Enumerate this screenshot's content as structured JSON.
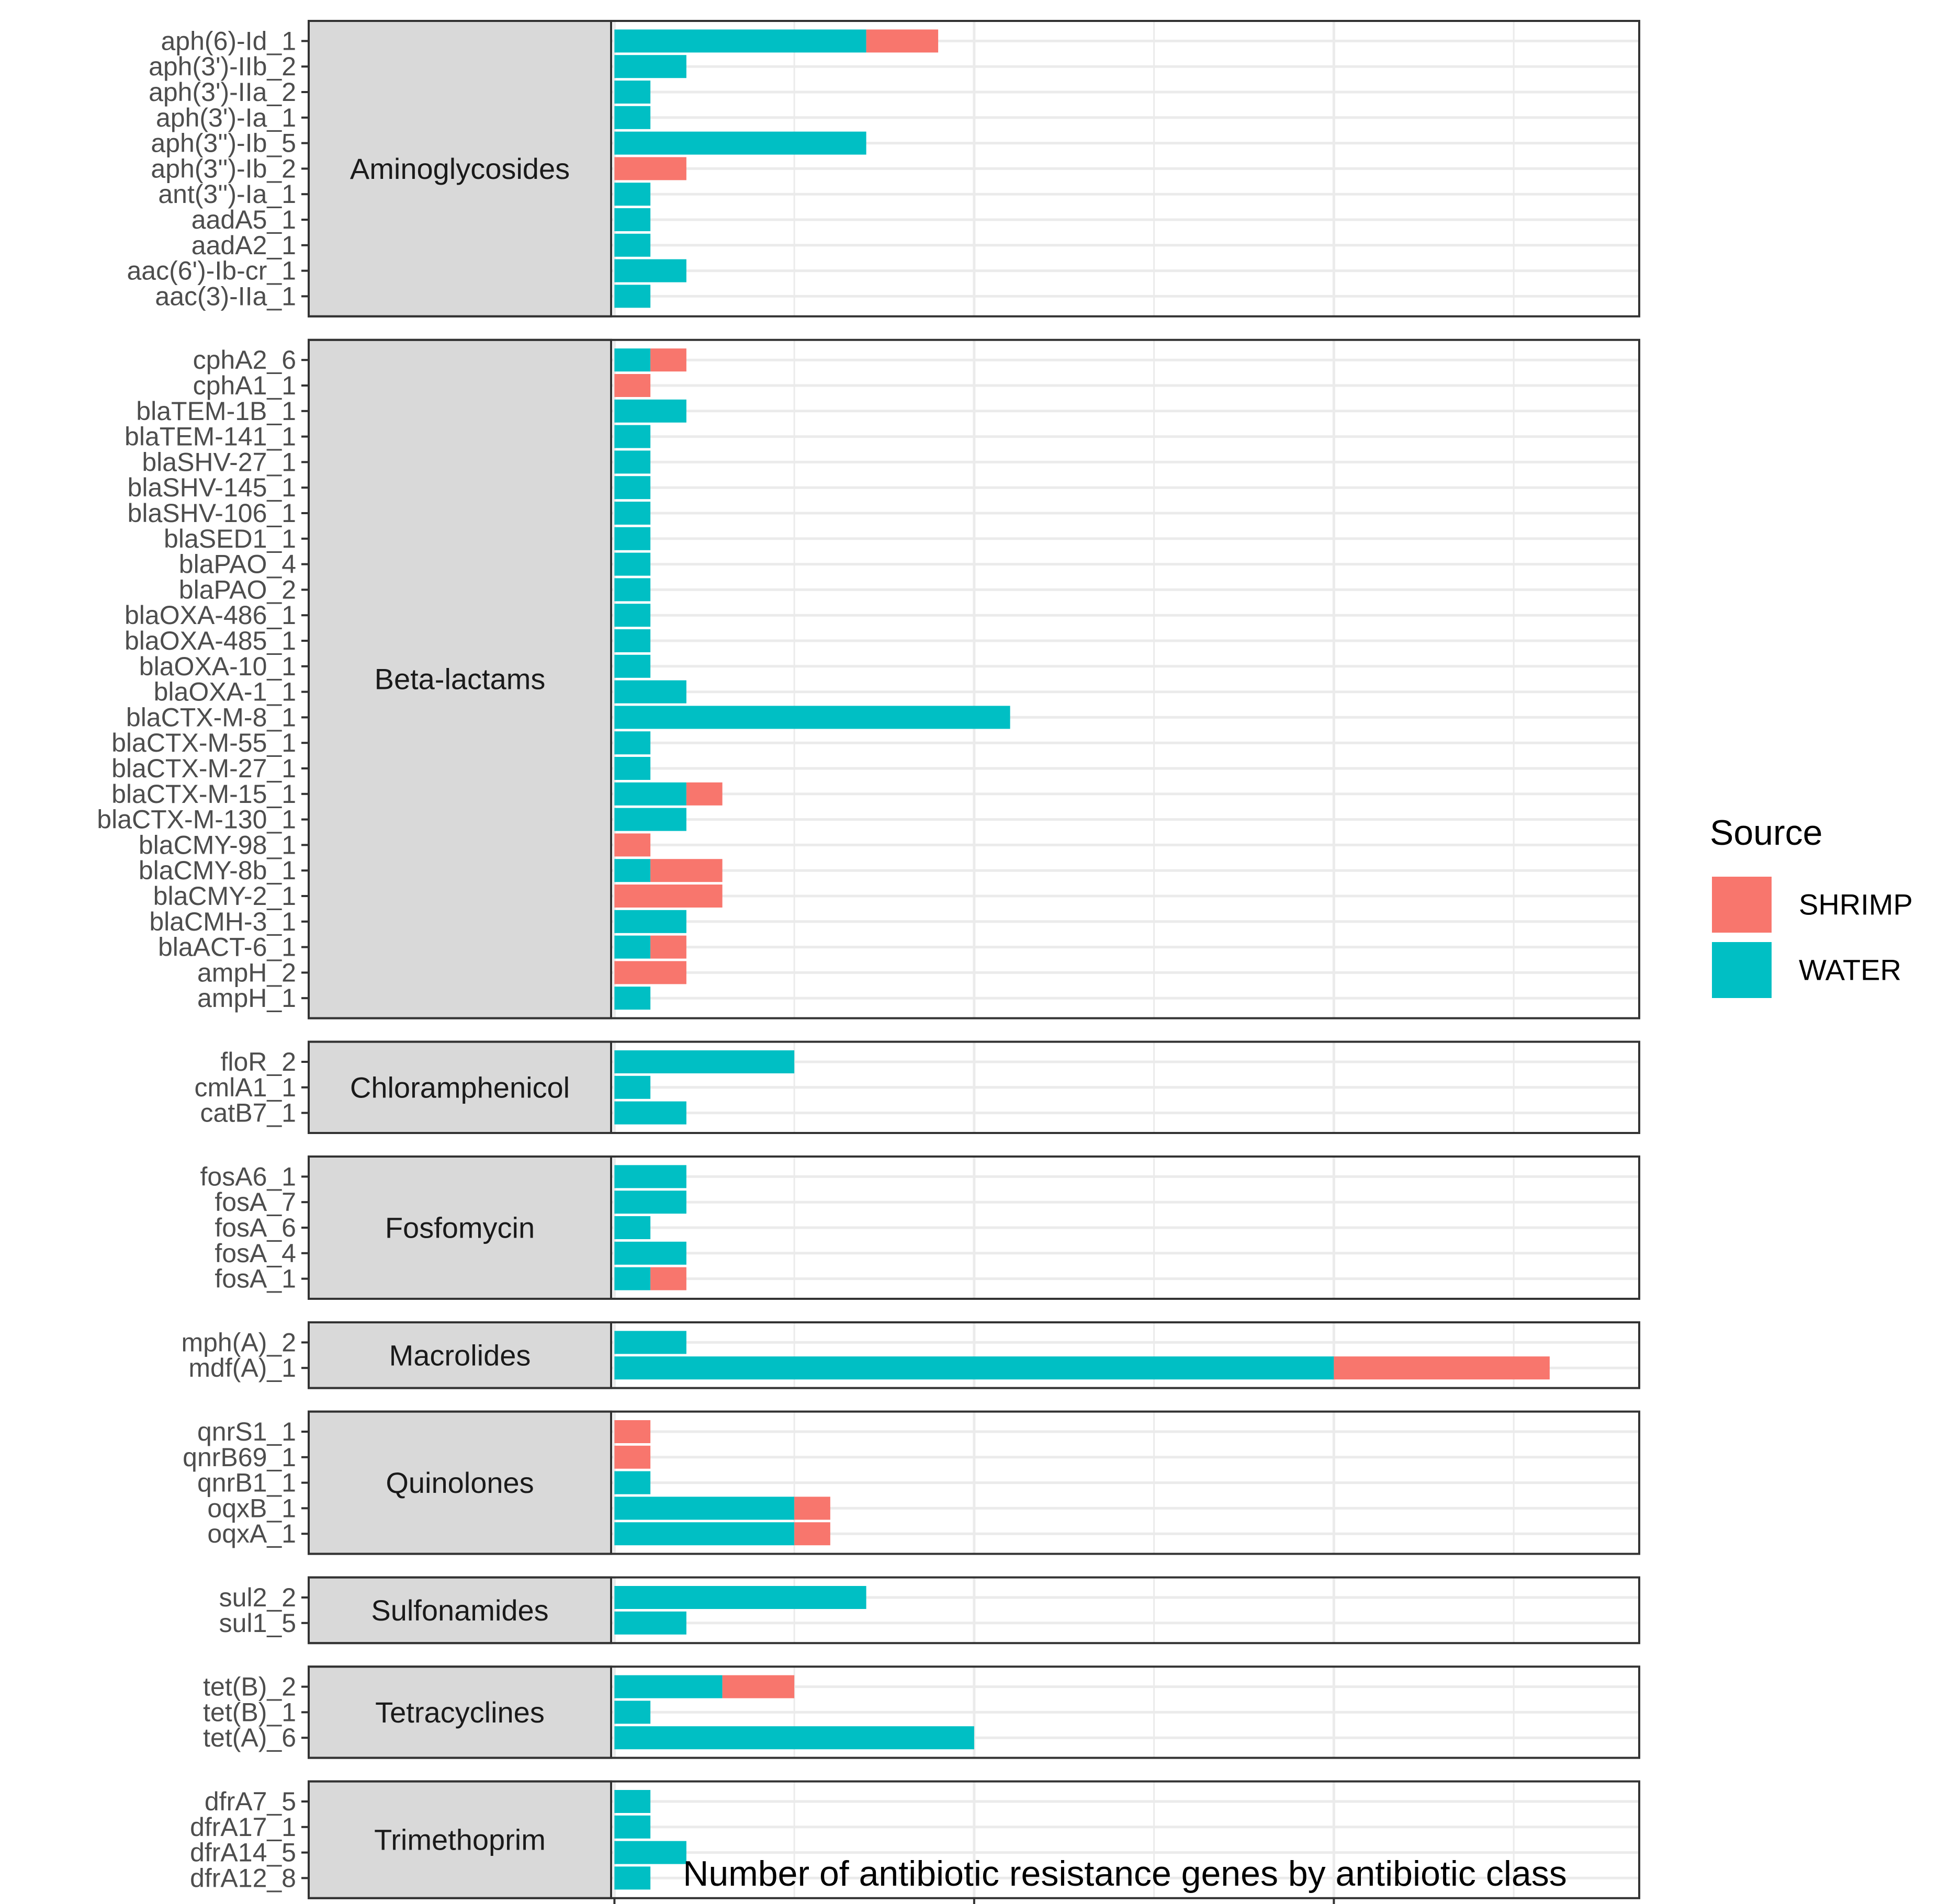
{
  "chart_data": {
    "type": "bar",
    "orientation": "horizontal",
    "stacked": true,
    "xlabel": "Number of antibiotic resistance genes by antibiotic class",
    "ylabel": "",
    "xlim": [
      -8.5,
      27.3
    ],
    "x_ticks": [
      0,
      10,
      20
    ],
    "grid": true,
    "legend": {
      "title": "Source",
      "position": "right",
      "items": [
        {
          "name": "SHRIMP",
          "color": "#F8766D"
        },
        {
          "name": "WATER",
          "color": "#00BFC4"
        }
      ]
    },
    "series": [
      {
        "name": "WATER",
        "color": "#00BFC4"
      },
      {
        "name": "SHRIMP",
        "color": "#F8766D"
      }
    ],
    "panels": [
      {
        "label": "Aminoglycosides",
        "genes": [
          {
            "name": "aph(6)-Id_1",
            "water": 7,
            "shrimp": 2
          },
          {
            "name": "aph(3')-IIb_2",
            "water": 2,
            "shrimp": 0
          },
          {
            "name": "aph(3')-IIa_2",
            "water": 1,
            "shrimp": 0
          },
          {
            "name": "aph(3')-Ia_1",
            "water": 1,
            "shrimp": 0
          },
          {
            "name": "aph(3'')-Ib_5",
            "water": 7,
            "shrimp": 0
          },
          {
            "name": "aph(3'')-Ib_2",
            "water": 0,
            "shrimp": 2
          },
          {
            "name": "ant(3'')-Ia_1",
            "water": 1,
            "shrimp": 0
          },
          {
            "name": "aadA5_1",
            "water": 1,
            "shrimp": 0
          },
          {
            "name": "aadA2_1",
            "water": 1,
            "shrimp": 0
          },
          {
            "name": "aac(6')-Ib-cr_1",
            "water": 2,
            "shrimp": 0
          },
          {
            "name": "aac(3)-IIa_1",
            "water": 1,
            "shrimp": 0
          }
        ]
      },
      {
        "label": "Beta-lactams",
        "genes": [
          {
            "name": "cphA2_6",
            "water": 1,
            "shrimp": 1
          },
          {
            "name": "cphA1_1",
            "water": 0,
            "shrimp": 1
          },
          {
            "name": "blaTEM-1B_1",
            "water": 2,
            "shrimp": 0
          },
          {
            "name": "blaTEM-141_1",
            "water": 1,
            "shrimp": 0
          },
          {
            "name": "blaSHV-27_1",
            "water": 1,
            "shrimp": 0
          },
          {
            "name": "blaSHV-145_1",
            "water": 1,
            "shrimp": 0
          },
          {
            "name": "blaSHV-106_1",
            "water": 1,
            "shrimp": 0
          },
          {
            "name": "blaSED1_1",
            "water": 1,
            "shrimp": 0
          },
          {
            "name": "blaPAO_4",
            "water": 1,
            "shrimp": 0
          },
          {
            "name": "blaPAO_2",
            "water": 1,
            "shrimp": 0
          },
          {
            "name": "blaOXA-486_1",
            "water": 1,
            "shrimp": 0
          },
          {
            "name": "blaOXA-485_1",
            "water": 1,
            "shrimp": 0
          },
          {
            "name": "blaOXA-10_1",
            "water": 1,
            "shrimp": 0
          },
          {
            "name": "blaOXA-1_1",
            "water": 2,
            "shrimp": 0
          },
          {
            "name": "blaCTX-M-8_1",
            "water": 11,
            "shrimp": 0
          },
          {
            "name": "blaCTX-M-55_1",
            "water": 1,
            "shrimp": 0
          },
          {
            "name": "blaCTX-M-27_1",
            "water": 1,
            "shrimp": 0
          },
          {
            "name": "blaCTX-M-15_1",
            "water": 2,
            "shrimp": 1
          },
          {
            "name": "blaCTX-M-130_1",
            "water": 2,
            "shrimp": 0
          },
          {
            "name": "blaCMY-98_1",
            "water": 0,
            "shrimp": 1
          },
          {
            "name": "blaCMY-8b_1",
            "water": 1,
            "shrimp": 2
          },
          {
            "name": "blaCMY-2_1",
            "water": 0,
            "shrimp": 3
          },
          {
            "name": "blaCMH-3_1",
            "water": 2,
            "shrimp": 0
          },
          {
            "name": "blaACT-6_1",
            "water": 1,
            "shrimp": 1
          },
          {
            "name": "ampH_2",
            "water": 0,
            "shrimp": 2
          },
          {
            "name": "ampH_1",
            "water": 1,
            "shrimp": 0
          }
        ]
      },
      {
        "label": "Chloramphenicol",
        "genes": [
          {
            "name": "floR_2",
            "water": 5,
            "shrimp": 0
          },
          {
            "name": "cmlA1_1",
            "water": 1,
            "shrimp": 0
          },
          {
            "name": "catB7_1",
            "water": 2,
            "shrimp": 0
          }
        ]
      },
      {
        "label": "Fosfomycin",
        "genes": [
          {
            "name": "fosA6_1",
            "water": 2,
            "shrimp": 0
          },
          {
            "name": "fosA_7",
            "water": 2,
            "shrimp": 0
          },
          {
            "name": "fosA_6",
            "water": 1,
            "shrimp": 0
          },
          {
            "name": "fosA_4",
            "water": 2,
            "shrimp": 0
          },
          {
            "name": "fosA_1",
            "water": 1,
            "shrimp": 1
          }
        ]
      },
      {
        "label": "Macrolides",
        "genes": [
          {
            "name": "mph(A)_2",
            "water": 2,
            "shrimp": 0
          },
          {
            "name": "mdf(A)_1",
            "water": 20,
            "shrimp": 6
          }
        ]
      },
      {
        "label": "Quinolones",
        "genes": [
          {
            "name": "qnrS1_1",
            "water": 0,
            "shrimp": 1
          },
          {
            "name": "qnrB69_1",
            "water": 0,
            "shrimp": 1
          },
          {
            "name": "qnrB1_1",
            "water": 1,
            "shrimp": 0
          },
          {
            "name": "oqxB_1",
            "water": 5,
            "shrimp": 1
          },
          {
            "name": "oqxA_1",
            "water": 5,
            "shrimp": 1
          }
        ]
      },
      {
        "label": "Sulfonamides",
        "genes": [
          {
            "name": "sul2_2",
            "water": 7,
            "shrimp": 0
          },
          {
            "name": "sul1_5",
            "water": 2,
            "shrimp": 0
          }
        ]
      },
      {
        "label": "Tetracyclines",
        "genes": [
          {
            "name": "tet(B)_2",
            "water": 3,
            "shrimp": 2
          },
          {
            "name": "tet(B)_1",
            "water": 1,
            "shrimp": 0
          },
          {
            "name": "tet(A)_6",
            "water": 10,
            "shrimp": 0
          }
        ]
      },
      {
        "label": "Trimethoprim",
        "genes": [
          {
            "name": "dfrA7_5",
            "water": 1,
            "shrimp": 0
          },
          {
            "name": "dfrA17_1",
            "water": 1,
            "shrimp": 0
          },
          {
            "name": "dfrA14_5",
            "water": 2,
            "shrimp": 0
          },
          {
            "name": "dfrA12_8",
            "water": 1,
            "shrimp": 0
          }
        ]
      }
    ]
  }
}
